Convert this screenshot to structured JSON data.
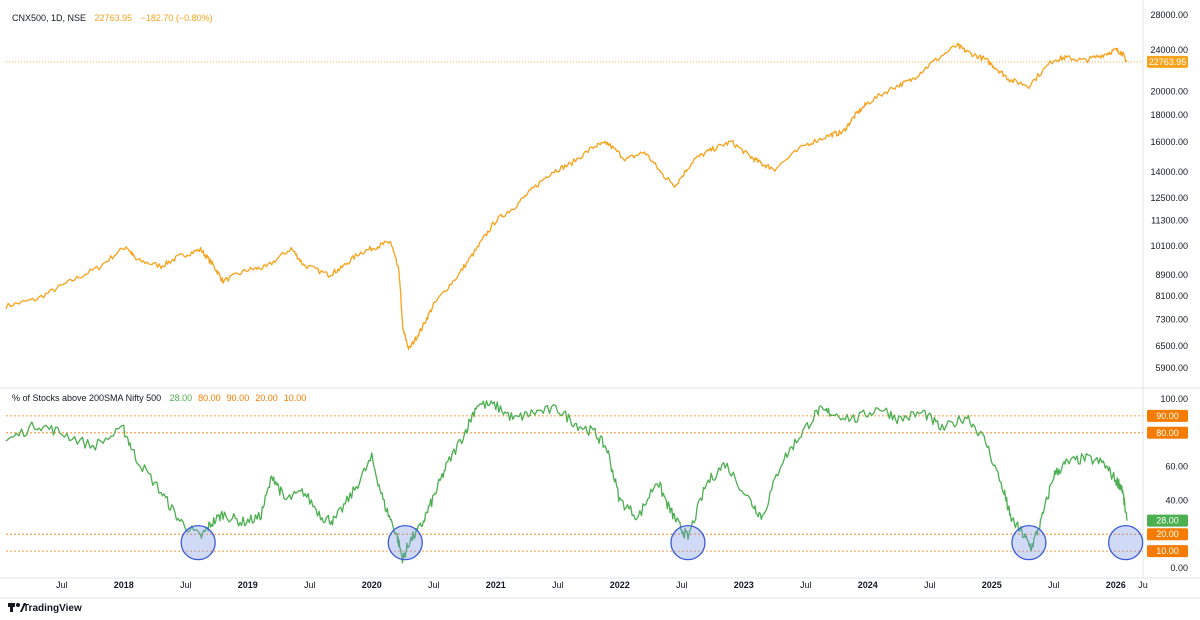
{
  "main_pane": {
    "symbol_label": "CNX500, 1D, NSE",
    "last_value_text": "22763.95",
    "change_text": "−182.70 (−0.80%)",
    "price_badge": "22763.95",
    "line_color": "#f7a21b",
    "y_ticks": [
      "28000.00",
      "24000.00",
      "20000.00",
      "18000.00",
      "16000.00",
      "14000.00",
      "12500.00",
      "11300.00",
      "10100.00",
      "8900.00",
      "8100.00",
      "7300.00",
      "6500.00",
      "5900.00"
    ]
  },
  "indicator_pane": {
    "title": "% of Stocks above 200SMA Nifty 500",
    "values_text": [
      {
        "text": "28.00",
        "color": "#4caf50"
      },
      {
        "text": "80.00",
        "color": "#f57c00"
      },
      {
        "text": "90.00",
        "color": "#f57c00"
      },
      {
        "text": "20.00",
        "color": "#f57c00"
      },
      {
        "text": "10.00",
        "color": "#f57c00"
      }
    ],
    "line_color": "#4caf50",
    "level_color": "#f57c00",
    "y_ticks": [
      "100.00",
      "60.00",
      "40.00",
      "0.00"
    ],
    "badges": [
      {
        "text": "90.00",
        "value": 90,
        "color": "#f57c00"
      },
      {
        "text": "80.00",
        "value": 80,
        "color": "#f57c00"
      },
      {
        "text": "28.00",
        "value": 28,
        "color": "#4caf50"
      },
      {
        "text": "20.00",
        "value": 20,
        "color": "#f57c00"
      },
      {
        "text": "10.00",
        "value": 10,
        "color": "#f57c00"
      }
    ]
  },
  "x_axis": {
    "labels": [
      {
        "text": "Jul",
        "t": 2017.5,
        "year": false
      },
      {
        "text": "2018",
        "t": 2018.0,
        "year": true
      },
      {
        "text": "Jul",
        "t": 2018.5,
        "year": false
      },
      {
        "text": "2019",
        "t": 2019.0,
        "year": true
      },
      {
        "text": "Jul",
        "t": 2019.5,
        "year": false
      },
      {
        "text": "2020",
        "t": 2020.0,
        "year": true
      },
      {
        "text": "Jul",
        "t": 2020.5,
        "year": false
      },
      {
        "text": "2021",
        "t": 2021.0,
        "year": true
      },
      {
        "text": "Jul",
        "t": 2021.5,
        "year": false
      },
      {
        "text": "2022",
        "t": 2022.0,
        "year": true
      },
      {
        "text": "Jul",
        "t": 2022.5,
        "year": false
      },
      {
        "text": "2023",
        "t": 2023.0,
        "year": true
      },
      {
        "text": "Jul",
        "t": 2023.5,
        "year": false
      },
      {
        "text": "2024",
        "t": 2024.0,
        "year": true
      },
      {
        "text": "Jul",
        "t": 2024.5,
        "year": false
      },
      {
        "text": "2025",
        "t": 2025.0,
        "year": true
      },
      {
        "text": "Jul",
        "t": 2025.5,
        "year": false
      },
      {
        "text": "2026",
        "t": 2026.0,
        "year": true
      },
      {
        "text": "Ju",
        "t": 2026.22,
        "year": false
      }
    ]
  },
  "branding": {
    "text": "TradingView"
  },
  "chart_data": [
    {
      "type": "line",
      "title": "CNX500, 1D, NSE",
      "ylabel": "",
      "log_scale": true,
      "ylim": [
        5600,
        30000
      ],
      "xlim": [
        2017.05,
        2026.22
      ],
      "grid": false,
      "series": [
        {
          "name": "CNX500",
          "color": "#f7a21b",
          "x": [
            2017.05,
            2017.3,
            2017.55,
            2017.8,
            2018.02,
            2018.1,
            2018.3,
            2018.45,
            2018.62,
            2018.72,
            2018.8,
            2019.0,
            2019.15,
            2019.35,
            2019.45,
            2019.65,
            2019.75,
            2019.9,
            2020.05,
            2020.15,
            2020.22,
            2020.25,
            2020.3,
            2020.4,
            2020.5,
            2020.7,
            2020.85,
            2021.0,
            2021.15,
            2021.3,
            2021.45,
            2021.6,
            2021.8,
            2021.9,
            2022.05,
            2022.2,
            2022.35,
            2022.45,
            2022.6,
            2022.75,
            2022.9,
            2023.05,
            2023.15,
            2023.25,
            2023.5,
            2023.7,
            2023.8,
            2023.9,
            2024.0,
            2024.2,
            2024.35,
            2024.5,
            2024.72,
            2024.8,
            2024.95,
            2025.05,
            2025.15,
            2025.3,
            2025.5,
            2025.6,
            2025.75,
            2025.9,
            2026.0,
            2026.05,
            2026.09
          ],
          "values": [
            7750,
            8000,
            8600,
            9200,
            10100,
            9500,
            9250,
            9650,
            9950,
            9300,
            8650,
            9100,
            9200,
            10000,
            9300,
            8900,
            9150,
            9800,
            10100,
            10300,
            9000,
            7000,
            6400,
            7000,
            7800,
            8900,
            10000,
            11300,
            12000,
            13000,
            14000,
            14500,
            15700,
            15900,
            14800,
            15300,
            13800,
            13200,
            14800,
            15500,
            16000,
            15000,
            14500,
            14200,
            15800,
            16500,
            16700,
            18000,
            19000,
            20300,
            21000,
            22500,
            24500,
            23800,
            23000,
            22000,
            21000,
            20500,
            23000,
            23200,
            22900,
            23500,
            24000,
            23700,
            22763.95
          ]
        }
      ]
    },
    {
      "type": "line",
      "title": "% of Stocks above 200SMA Nifty 500",
      "ylabel": "",
      "ylim": [
        0,
        100
      ],
      "xlim": [
        2017.05,
        2026.22
      ],
      "reference_lines": [
        90,
        80,
        20,
        10
      ],
      "series": [
        {
          "name": "% of Stocks above 200SMA Nifty 500",
          "color": "#4caf50",
          "x": [
            2017.05,
            2017.3,
            2017.5,
            2017.75,
            2018.0,
            2018.1,
            2018.3,
            2018.45,
            2018.62,
            2018.7,
            2018.8,
            2018.95,
            2019.1,
            2019.2,
            2019.3,
            2019.45,
            2019.6,
            2019.7,
            2019.85,
            2020.0,
            2020.1,
            2020.2,
            2020.25,
            2020.3,
            2020.4,
            2020.5,
            2020.6,
            2020.75,
            2020.85,
            2021.0,
            2021.15,
            2021.3,
            2021.5,
            2021.65,
            2021.8,
            2021.9,
            2022.0,
            2022.15,
            2022.3,
            2022.4,
            2022.48,
            2022.55,
            2022.7,
            2022.85,
            2023.05,
            2023.15,
            2023.3,
            2023.45,
            2023.6,
            2023.7,
            2023.9,
            2024.1,
            2024.25,
            2024.45,
            2024.6,
            2024.8,
            2024.95,
            2025.1,
            2025.15,
            2025.25,
            2025.32,
            2025.4,
            2025.5,
            2025.6,
            2025.75,
            2025.9,
            2026.0,
            2026.05,
            2026.09
          ],
          "values": [
            75,
            85,
            80,
            72,
            82,
            65,
            45,
            28,
            18,
            26,
            32,
            27,
            30,
            55,
            40,
            45,
            30,
            28,
            45,
            65,
            38,
            20,
            5,
            15,
            25,
            42,
            60,
            80,
            97,
            96,
            88,
            92,
            94,
            85,
            80,
            70,
            40,
            30,
            52,
            35,
            25,
            18,
            50,
            62,
            40,
            30,
            62,
            78,
            93,
            92,
            88,
            95,
            88,
            92,
            82,
            90,
            75,
            45,
            30,
            20,
            12,
            28,
            55,
            62,
            65,
            62,
            52,
            48,
            28
          ]
        }
      ]
    }
  ],
  "highlight_circles": [
    {
      "t": 2018.6,
      "value": 15
    },
    {
      "t": 2020.27,
      "value": 15
    },
    {
      "t": 2022.55,
      "value": 15
    },
    {
      "t": 2025.3,
      "value": 15
    },
    {
      "t": 2026.08,
      "value": 15
    }
  ]
}
